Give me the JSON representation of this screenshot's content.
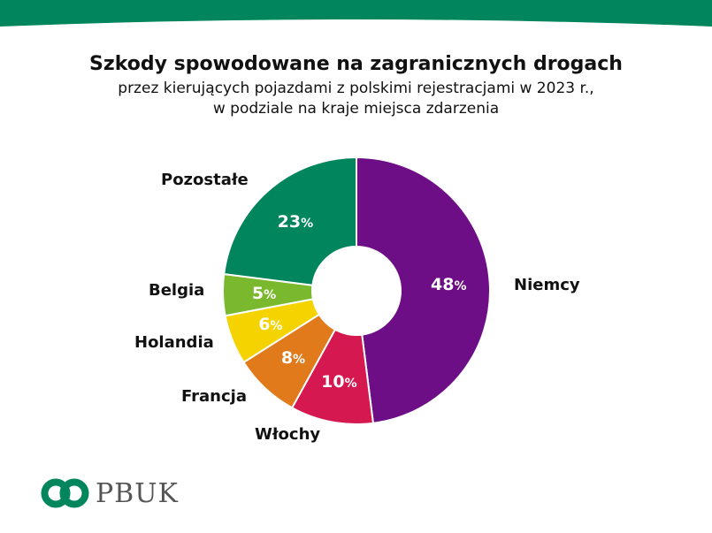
{
  "chart_data": {
    "type": "pie",
    "variant": "donut",
    "title": "Szkody spowodowane na zagranicznych drogach",
    "subtitle_line1": "przez kierujących pojazdami z polskimi rejestracjami w 2023 r.,",
    "subtitle_line2": "w podziale na kraje miejsca zdarzenia",
    "unit": "%",
    "categories": [
      "Niemcy",
      "Włochy",
      "Francja",
      "Holandia",
      "Belgia",
      "Pozostałe"
    ],
    "values": [
      48,
      10,
      8,
      6,
      5,
      23
    ],
    "colors": [
      "#6d0e86",
      "#d5184f",
      "#e07a1b",
      "#f4d300",
      "#7ab82e",
      "#00855c"
    ],
    "legend": "none"
  },
  "brand": {
    "logo_text": "PBUK",
    "color": "#00855c"
  }
}
